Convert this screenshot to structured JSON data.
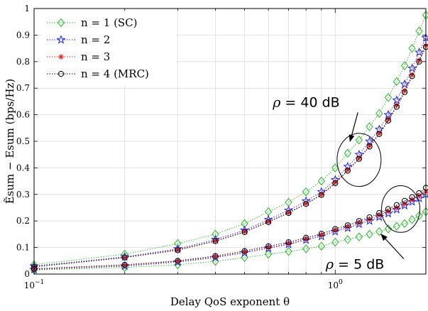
{
  "chart_data": {
    "type": "line",
    "xlabel": "Delay QoS exponent θ",
    "ylabel": "Ẽsum − Esum (bps/Hz)",
    "x_scale": "log",
    "xlim": [
      0.1,
      2.0
    ],
    "ylim": [
      0,
      1
    ],
    "grid": true,
    "legend_position": "top-left",
    "x_ticks": [
      {
        "value": 0.1,
        "base": "10",
        "exp": "−1"
      },
      {
        "value": 1,
        "base": "10",
        "exp": "0"
      }
    ],
    "y_ticks": [
      0,
      0.1,
      0.2,
      0.3,
      0.4,
      0.5,
      0.6,
      0.7,
      0.8,
      0.9,
      1
    ],
    "y_tick_labels": [
      "0",
      "0.1",
      "0.2",
      "0.3",
      "0.4",
      "0.5",
      "0.6",
      "0.7",
      "0.8",
      "0.9",
      "1"
    ],
    "x": [
      0.1,
      0.2,
      0.3,
      0.4,
      0.5,
      0.6,
      0.7,
      0.8,
      0.9,
      1.0,
      1.1,
      1.2,
      1.3,
      1.4,
      1.5,
      1.6,
      1.7,
      1.8,
      1.9,
      2.0
    ],
    "series": [
      {
        "name": "n = 1 (SC)",
        "legend_label": "n = 1 (SC)",
        "color": "#22bb22",
        "marker": "diamond",
        "group": "rho40",
        "values": [
          0.035,
          0.075,
          0.115,
          0.15,
          0.19,
          0.235,
          0.27,
          0.31,
          0.35,
          0.4,
          0.455,
          0.505,
          0.555,
          0.605,
          0.665,
          0.725,
          0.785,
          0.85,
          0.915,
          0.975
        ]
      },
      {
        "name": "n = 2",
        "legend_label": "n = 2",
        "color": "#2222dd",
        "marker": "star",
        "group": "rho40",
        "values": [
          0.03,
          0.065,
          0.095,
          0.13,
          0.165,
          0.205,
          0.24,
          0.275,
          0.31,
          0.355,
          0.405,
          0.45,
          0.5,
          0.545,
          0.6,
          0.655,
          0.715,
          0.775,
          0.835,
          0.89
        ]
      },
      {
        "name": "n = 3",
        "legend_label": "n = 3",
        "color": "#dd2222",
        "marker": "asterisk",
        "group": "rho40",
        "values": [
          0.028,
          0.063,
          0.092,
          0.125,
          0.16,
          0.198,
          0.232,
          0.266,
          0.3,
          0.345,
          0.392,
          0.437,
          0.483,
          0.53,
          0.582,
          0.635,
          0.69,
          0.75,
          0.805,
          0.86
        ]
      },
      {
        "name": "n = 4 (MRC)",
        "legend_label": "n = 4 (MRC)",
        "color": "#000000",
        "marker": "circle",
        "group": "rho40",
        "values": [
          0.027,
          0.062,
          0.09,
          0.124,
          0.158,
          0.196,
          0.23,
          0.264,
          0.298,
          0.342,
          0.389,
          0.434,
          0.48,
          0.527,
          0.578,
          0.63,
          0.685,
          0.745,
          0.8,
          0.855
        ]
      },
      {
        "name": "",
        "color": "#22bb22",
        "marker": "diamond",
        "group": "rho5",
        "values": [
          0.015,
          0.025,
          0.035,
          0.048,
          0.062,
          0.075,
          0.085,
          0.095,
          0.105,
          0.12,
          0.13,
          0.14,
          0.15,
          0.16,
          0.17,
          0.18,
          0.19,
          0.205,
          0.22,
          0.235
        ]
      },
      {
        "name": "",
        "color": "#2222dd",
        "marker": "star",
        "group": "rho5",
        "values": [
          0.017,
          0.03,
          0.045,
          0.062,
          0.08,
          0.097,
          0.112,
          0.128,
          0.142,
          0.16,
          0.173,
          0.188,
          0.2,
          0.215,
          0.228,
          0.243,
          0.258,
          0.272,
          0.285,
          0.3
        ]
      },
      {
        "name": "",
        "color": "#dd2222",
        "marker": "asterisk",
        "group": "rho5",
        "values": [
          0.018,
          0.032,
          0.048,
          0.065,
          0.083,
          0.1,
          0.115,
          0.132,
          0.147,
          0.165,
          0.178,
          0.193,
          0.206,
          0.222,
          0.236,
          0.25,
          0.265,
          0.28,
          0.295,
          0.31
        ]
      },
      {
        "name": "",
        "color": "#000000",
        "marker": "circle",
        "group": "rho5",
        "values": [
          0.02,
          0.035,
          0.05,
          0.068,
          0.087,
          0.105,
          0.12,
          0.137,
          0.152,
          0.17,
          0.184,
          0.2,
          0.214,
          0.23,
          0.245,
          0.26,
          0.276,
          0.29,
          0.305,
          0.325
        ]
      }
    ],
    "annotations": [
      {
        "text_italic": "ρ",
        "text": " = 40 dB",
        "ellipse_center": [
          1.2,
          0.43
        ],
        "ellipse_rx": 0.2,
        "ellipse_ry": 0.1,
        "label_at": [
          0.62,
          0.63
        ],
        "arrow_tip": [
          1.12,
          0.5
        ]
      },
      {
        "text_italic": "ρ",
        "text": " = 5 dB",
        "ellipse_center": [
          1.65,
          0.245
        ],
        "ellipse_rx": 0.24,
        "ellipse_ry": 0.088,
        "label_at": [
          0.93,
          0.02
        ],
        "arrow_tip": [
          1.42,
          0.15
        ]
      }
    ]
  }
}
